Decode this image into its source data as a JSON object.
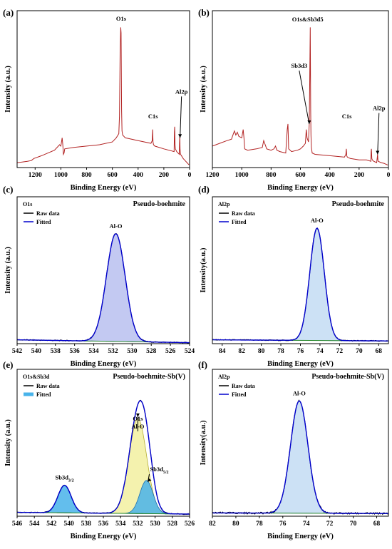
{
  "panels": [
    {
      "label": "(a)",
      "chart_data": {
        "type": "line",
        "xlabel": "Binding Energy (eV)",
        "ylabel": "Intensity (a.u.)",
        "xlim": [
          1340,
          0
        ],
        "ylim": [
          0,
          100
        ],
        "xticks": [
          1200,
          1000,
          800,
          600,
          400,
          200,
          0
        ],
        "series": [
          {
            "color": "#b22222",
            "x": [
              1340,
              1300,
              1260,
              1230,
              1210,
              1150,
              1100,
              1050,
              1010,
              1000,
              990,
              985,
              980,
              975,
              970,
              900,
              800,
              700,
              600,
              570,
              550,
              545,
              540,
              535,
              532,
              528,
              525,
              520,
              510,
              500,
              400,
              300,
              290,
              287,
              284,
              280,
              270,
              200,
              120,
              118,
              116,
              113,
              110,
              100,
              80,
              78,
              76,
              74,
              72,
              70,
              50,
              30,
              20,
              10,
              5
            ],
            "y": [
              2,
              2.5,
              3,
              3.5,
              5,
              7,
              9,
              11,
              15,
              14,
              20,
              15,
              8,
              9,
              12,
              13,
              14,
              15,
              17,
              20,
              23,
              35,
              80,
              100,
              96,
              40,
              25,
              22,
              21,
              20,
              18,
              16,
              18,
              26,
              17,
              15,
              14,
              12,
              10,
              24,
              28,
              15,
              12,
              10,
              8,
              16,
              22,
              12,
              9,
              8,
              5,
              3,
              2,
              1,
              0.5
            ]
          }
        ],
        "annotations": [
          {
            "text": "O1s",
            "x": 532
          },
          {
            "text": "C1s",
            "x": 284
          },
          {
            "text": "Al2p",
            "x": 74
          }
        ]
      }
    },
    {
      "label": "(b)",
      "chart_data": {
        "type": "line",
        "xlabel": "Binding Energy (eV)",
        "ylabel": "Intensity (a.u.)",
        "xlim": [
          1200,
          0
        ],
        "ylim": [
          0,
          100
        ],
        "xticks": [
          1200,
          1000,
          800,
          600,
          400,
          200,
          0
        ],
        "series": [
          {
            "color": "#b22222",
            "x": [
              1200,
              1150,
              1100,
              1070,
              1060,
              1050,
              1040,
              1030,
              1020,
              1000,
              990,
              985,
              980,
              960,
              900,
              860,
              850,
              840,
              830,
              800,
              780,
              770,
              760,
              740,
              700,
              690,
              685,
              680,
              660,
              620,
              600,
              580,
              566,
              560,
              555,
              545,
              540,
              537,
              533,
              530,
              528,
              525,
              520,
              500,
              400,
              300,
              290,
              287,
              284,
              280,
              260,
              200,
              150,
              120,
              118,
              116,
              113,
              110,
              100,
              80,
              76,
              74,
              72,
              70,
              50,
              30,
              20,
              10,
              5
            ],
            "y": [
              14,
              16,
              18,
              19,
              22,
              25,
              22,
              24,
              21,
              20,
              26,
              20,
              12,
              11,
              12,
              13,
              18,
              15,
              12,
              11,
              12,
              14,
              11,
              10,
              9,
              26,
              30,
              12,
              10,
              11,
              12,
              14,
              16,
              26,
              20,
              17,
              30,
              58,
              100,
              40,
              22,
              13,
              9,
              8,
              7,
              6,
              8,
              12,
              7,
              6,
              5,
              4,
              4,
              3,
              10,
              12,
              5,
              4,
              3,
              2,
              6,
              8,
              4,
              3,
              2,
              1.5,
              1,
              0.5,
              0.3
            ]
          }
        ],
        "annotations": [
          {
            "text": "O1s&Sb3d5",
            "x": 531
          },
          {
            "text": "Sb3d3",
            "x": 540
          },
          {
            "text": "C1s",
            "x": 284
          },
          {
            "text": "Al2p",
            "x": 74
          }
        ]
      }
    },
    {
      "label": "(c)",
      "chart_data": {
        "type": "line",
        "title": "Pseudo-boehmite",
        "element": "O1s",
        "xlabel": "Binding Energy (eV)",
        "ylabel": "Intensity (a.u.)",
        "xlim": [
          542,
          524
        ],
        "ylim": [
          0,
          100
        ],
        "xticks": [
          542,
          540,
          538,
          536,
          534,
          532,
          530,
          528,
          526,
          524
        ],
        "legend": [
          "Raw data",
          "Fitted"
        ],
        "background": {
          "x0": 542,
          "y0": 1.5,
          "x1": 524,
          "y1": -1
        },
        "peaks": [
          {
            "name": "Al-O",
            "center": 531.7,
            "fwhm": 2.3,
            "height": 94,
            "fill": "#b9bff0",
            "stroke": "#7076c8"
          }
        ],
        "raw_color": "#000000",
        "fit_color": "#0000cc"
      }
    },
    {
      "label": "(d)",
      "chart_data": {
        "type": "line",
        "title": "Pseudo-boehmite",
        "element": "Al2p",
        "xlabel": "Binding Energy (eV)",
        "ylabel": "Intensity(a.u.)",
        "xlim": [
          85,
          67
        ],
        "ylim": [
          0,
          100
        ],
        "xticks": [
          84,
          82,
          80,
          78,
          76,
          74,
          72,
          70,
          68
        ],
        "legend": [
          "Raw data",
          "Fitted"
        ],
        "background": {
          "x0": 85,
          "y0": 1.5,
          "x1": 67,
          "y1": 0.5
        },
        "peaks": [
          {
            "name": "Al-O",
            "center": 74.3,
            "fwhm": 1.75,
            "height": 98,
            "fill": "#c3dcf3",
            "stroke": "#6fa0d2"
          }
        ],
        "raw_color": "#000000",
        "fit_color": "#0000cc"
      }
    },
    {
      "label": "(e)",
      "chart_data": {
        "type": "line",
        "title": "Pseudo-boehmite-Sb(V)",
        "element": "O1s&Sb3d",
        "xlabel": "Binding Energy (eV)",
        "ylabel": "Intensity (a.u.)",
        "xlim": [
          546,
          526
        ],
        "ylim": [
          0,
          100
        ],
        "xticks": [
          546,
          544,
          542,
          540,
          538,
          536,
          534,
          532,
          530,
          528,
          526
        ],
        "legend": [
          "Raw data",
          "Fitted"
        ],
        "background": {
          "x0": 546,
          "y0": 1.5,
          "x1": 526,
          "y1": 0
        },
        "peaks": [
          {
            "name": "Sb3d3/2",
            "center": 540.5,
            "fwhm": 1.8,
            "height": 24,
            "fill": "#48b3ea",
            "stroke": "#1e6fb0"
          },
          {
            "name": "O1s Al-O",
            "center": 532.0,
            "fwhm": 2.4,
            "height": 83,
            "fill": "#f2f0a0",
            "stroke": "#b5ae30"
          },
          {
            "name": "Sb3d5/2",
            "center": 531.0,
            "fwhm": 1.8,
            "height": 29,
            "fill": "#48b3ea",
            "stroke": "#1e6fb0"
          }
        ],
        "raw_color": "#000000",
        "fit_color": "#0000cc"
      }
    },
    {
      "label": "(f)",
      "chart_data": {
        "type": "line",
        "title": "Pseudo-boehmite-Sb(V)",
        "element": "Al2p",
        "xlabel": "Binding Energy (eV)",
        "ylabel": "Intensity(a.u.)",
        "xlim": [
          82,
          67
        ],
        "ylim": [
          0,
          100
        ],
        "xticks": [
          82,
          80,
          78,
          76,
          74,
          72,
          70,
          68
        ],
        "legend": [
          "Raw data",
          "Fitted"
        ],
        "background": {
          "x0": 82,
          "y0": 1,
          "x1": 67,
          "y1": 0.5
        },
        "peaks": [
          {
            "name": "Al-O",
            "center": 74.6,
            "fwhm": 1.75,
            "height": 98,
            "fill": "#c3dcf3",
            "stroke": "#6fa0d2"
          }
        ],
        "raw_color": "#000000",
        "fit_color": "#0000cc"
      }
    }
  ]
}
